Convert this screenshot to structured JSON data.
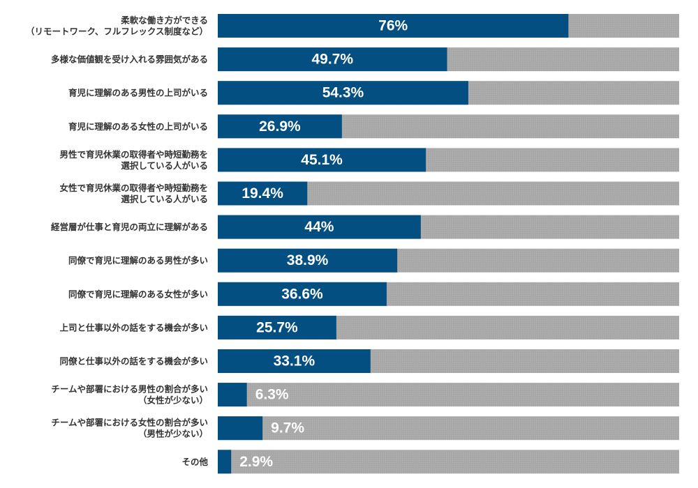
{
  "chart_data": {
    "type": "bar",
    "orientation": "horizontal",
    "categories": [
      [
        "柔軟な働き方ができる",
        "（リモートワーク、フルフレックス制度など）"
      ],
      [
        "多様な価値観を受け入れる雰囲気がある"
      ],
      [
        "育児に理解のある男性の上司がいる"
      ],
      [
        "育児に理解のある女性の上司がいる"
      ],
      [
        "男性で育児休業の取得者や時短勤務を",
        "選択している人がいる"
      ],
      [
        "女性で育児休業の取得者や時短勤務を",
        "選択している人がいる"
      ],
      [
        "経営層が仕事と育児の両立に理解がある"
      ],
      [
        "同僚で育児に理解のある男性が多い"
      ],
      [
        "同僚で育児に理解のある女性が多い"
      ],
      [
        "上司と仕事以外の話をする機会が多い"
      ],
      [
        "同僚と仕事以外の話をする機会が多い"
      ],
      [
        "チームや部署における男性の割合が多い",
        "（女性が少ない）"
      ],
      [
        "チームや部署における女性の割合が多い",
        "（男性が少ない）"
      ],
      [
        "その他"
      ]
    ],
    "values": [
      76,
      49.7,
      54.3,
      26.9,
      45.1,
      19.4,
      44,
      38.9,
      36.6,
      25.7,
      33.1,
      6.3,
      9.7,
      2.9
    ],
    "value_labels": [
      "76%",
      "49.7%",
      "54.3%",
      "26.9%",
      "45.1%",
      "19.4%",
      "44%",
      "38.9%",
      "36.6%",
      "25.7%",
      "33.1%",
      "6.3%",
      "9.7%",
      "2.9%"
    ],
    "xlim": [
      0,
      100
    ],
    "colors": {
      "bar": "#034f82",
      "track": "#a8a8a8",
      "track_texture": "#b6b6b6",
      "label_text": "#333333",
      "value_text": "#ffffff"
    }
  }
}
